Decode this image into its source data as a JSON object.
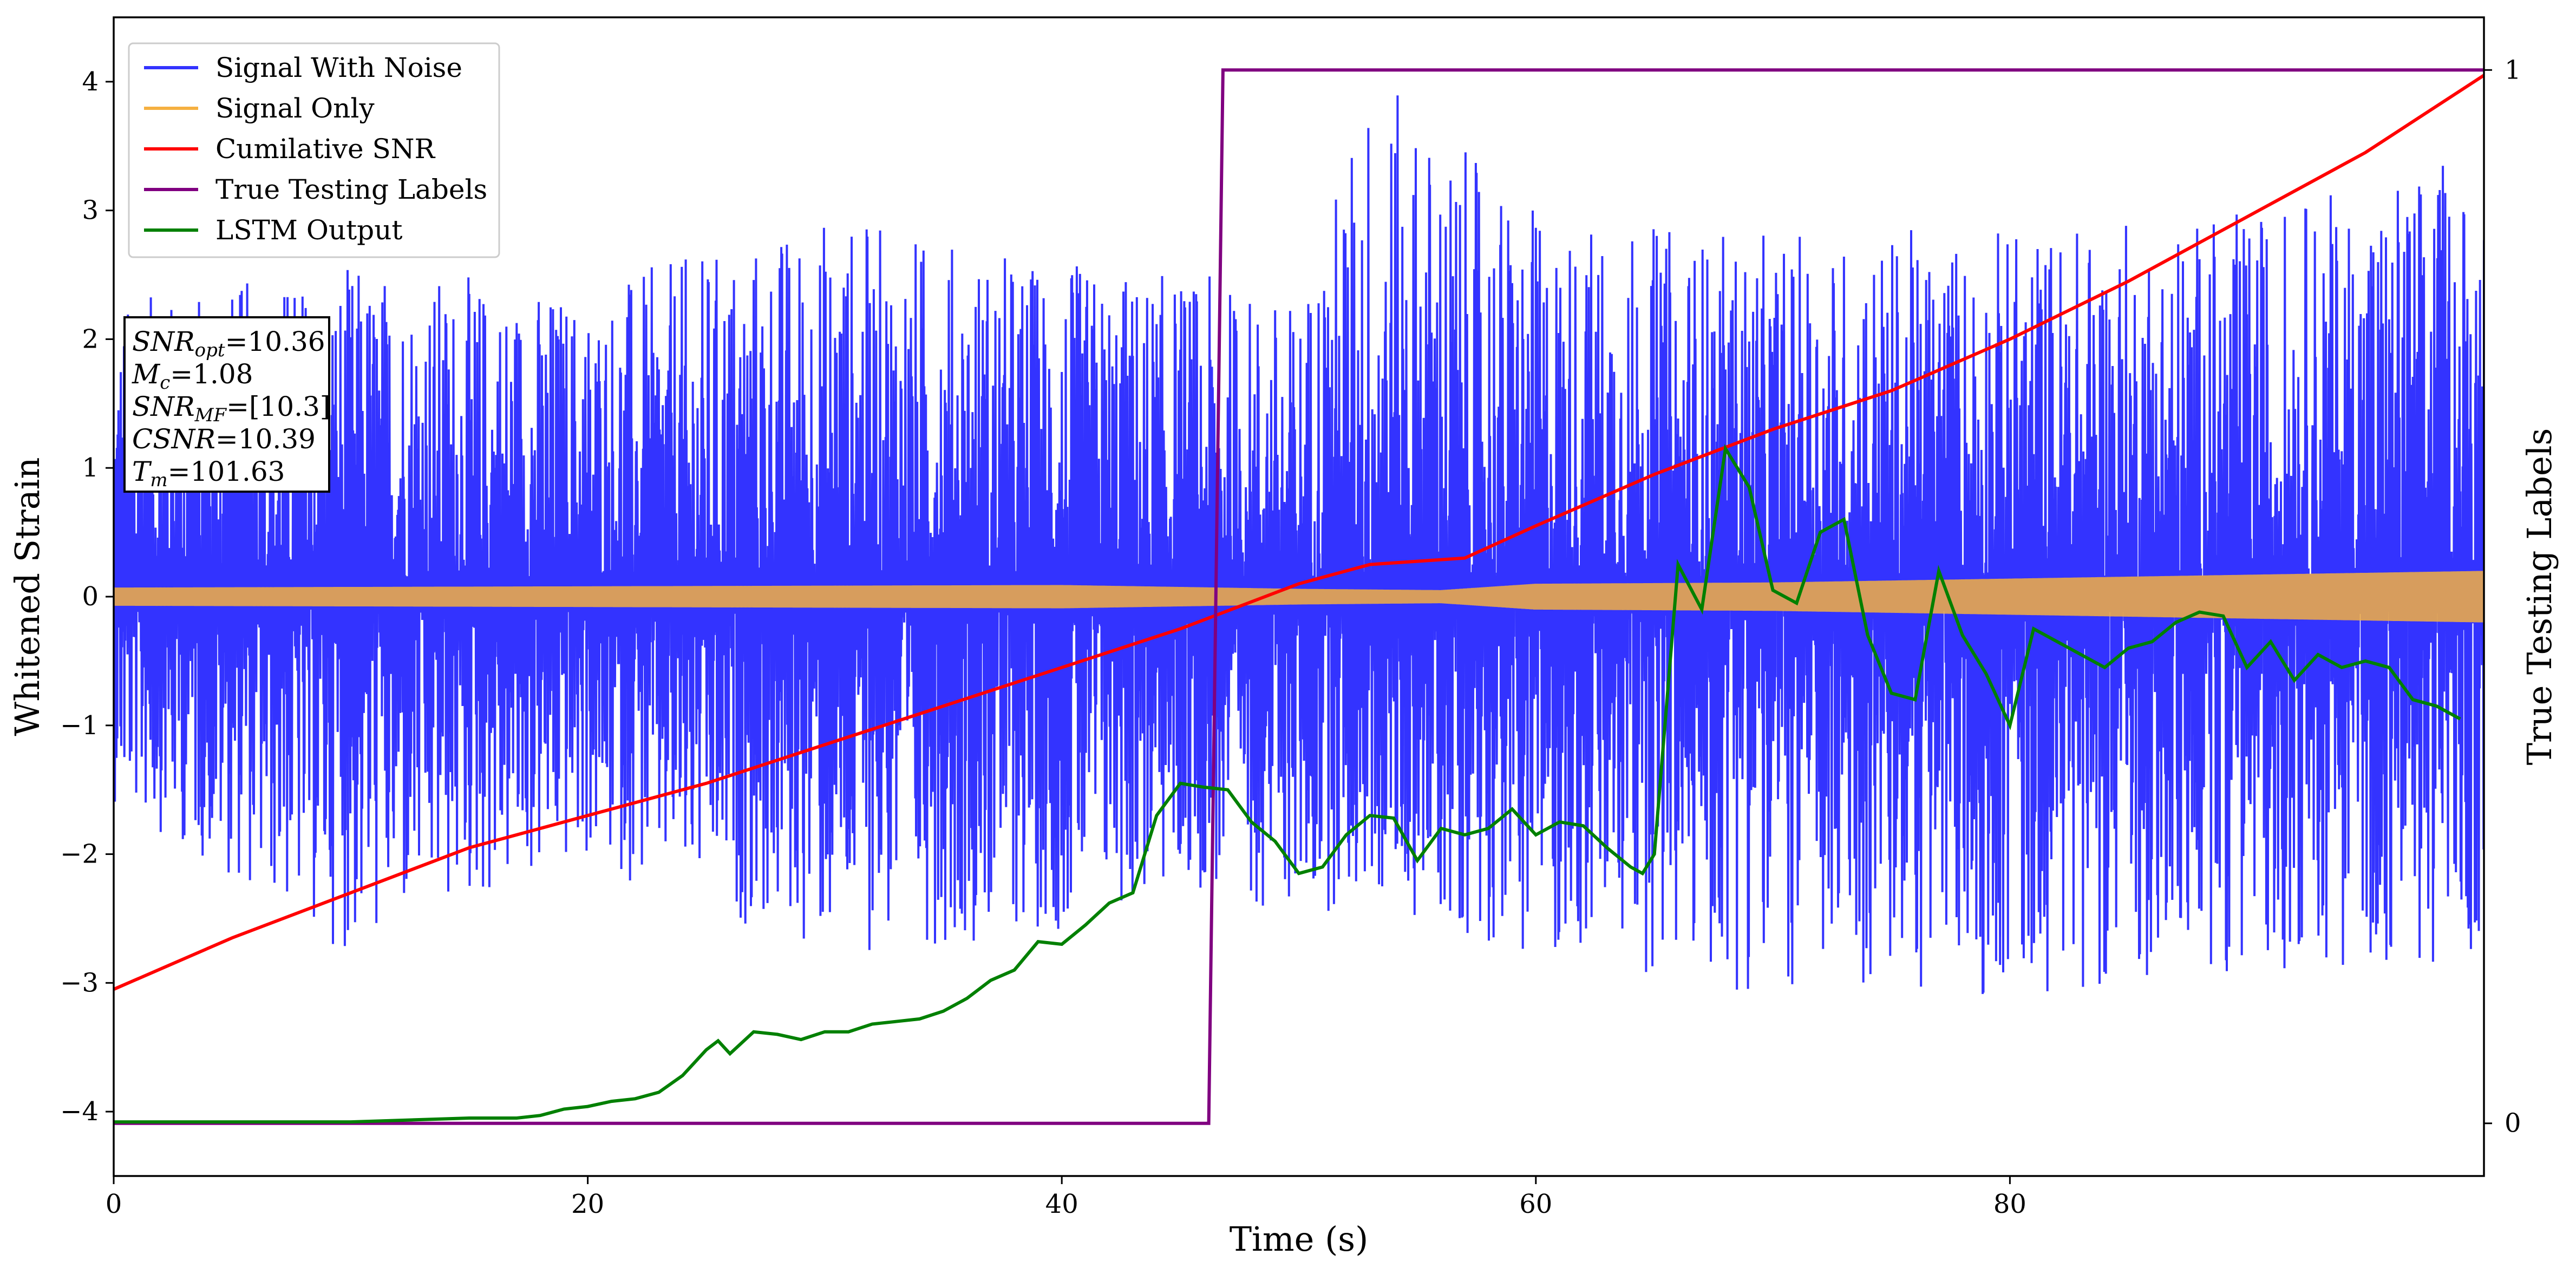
{
  "chart_data": {
    "type": "line",
    "xlabel": "Time (s)",
    "ylabel_left": "Whitened Strain",
    "ylabel_right": "True Testing Labels",
    "xlim": [
      0,
      100
    ],
    "ylim_left": [
      -4.5,
      4.5
    ],
    "ylim_right": [
      -0.05,
      1.05
    ],
    "x_ticks": [
      0,
      20,
      40,
      60,
      80
    ],
    "y_left_ticks": [
      -4,
      -3,
      -2,
      -1,
      0,
      1,
      2,
      3,
      4
    ],
    "y_right_ticks": [
      0,
      1
    ],
    "legend_position": "upper-left",
    "info_box": [
      "SNRopt=10.36",
      "Mc=1.08",
      "SNRMF=[10.3]",
      "CSNR=10.39",
      "Tm=101.63"
    ],
    "info_box_parts": [
      {
        "base": "SNR",
        "sub": "opt",
        "value": "=10.36"
      },
      {
        "base": "M",
        "sub": "c",
        "value": "=1.08"
      },
      {
        "base": "SNR",
        "sub": "MF",
        "value": "=[10.3]"
      },
      {
        "base": "CSNR",
        "sub": "",
        "value": "=10.39"
      },
      {
        "base": "T",
        "sub": "m",
        "value": "=101.63"
      }
    ],
    "series": [
      {
        "name": "Signal With Noise",
        "color": "#3333ff",
        "axis": "left",
        "description_range": [
          -3.3,
          4.1
        ],
        "envelope_x": [
          0,
          10,
          20,
          30,
          40,
          46,
          50,
          53,
          60,
          70,
          80,
          90,
          100
        ],
        "envelope_upper": [
          2.3,
          2.6,
          2.4,
          3.0,
          2.6,
          2.5,
          2.3,
          4.1,
          3.0,
          2.8,
          2.9,
          3.0,
          3.5
        ],
        "envelope_lower": [
          -1.6,
          -2.8,
          -2.1,
          -2.8,
          -2.6,
          -2.3,
          -2.5,
          -2.4,
          -2.8,
          -3.1,
          -3.1,
          -2.9,
          -2.9
        ]
      },
      {
        "name": "Signal Only",
        "color": "#f5b041",
        "axis": "left",
        "x": [
          0,
          20,
          40,
          50,
          56,
          60,
          70,
          80,
          90,
          100
        ],
        "amplitude": [
          0.07,
          0.08,
          0.09,
          0.06,
          0.05,
          0.1,
          0.11,
          0.14,
          0.17,
          0.2
        ]
      },
      {
        "name": "Cumilative SNR",
        "color": "#ff0000",
        "axis": "left",
        "x": [
          0,
          5,
          10,
          15,
          20,
          25,
          30,
          35,
          40,
          45,
          50,
          53,
          57,
          60,
          65,
          70,
          75,
          80,
          85,
          90,
          95,
          100
        ],
        "y": [
          -3.05,
          -2.65,
          -2.3,
          -1.95,
          -1.7,
          -1.45,
          -1.15,
          -0.85,
          -0.55,
          -0.25,
          0.1,
          0.25,
          0.3,
          0.55,
          0.95,
          1.3,
          1.6,
          2.0,
          2.45,
          2.95,
          3.45,
          4.05
        ]
      },
      {
        "name": "True Testing Labels",
        "color": "#800080",
        "axis": "right",
        "x": [
          0,
          46.2,
          46.8,
          100
        ],
        "y": [
          0,
          0,
          1,
          1
        ]
      },
      {
        "name": "LSTM Output",
        "color": "#008000",
        "axis": "left",
        "x": [
          0,
          10,
          15,
          17,
          18,
          19,
          20,
          21,
          22,
          23,
          24,
          25,
          25.5,
          26,
          27,
          28,
          29,
          30,
          31,
          32,
          33,
          34,
          35,
          36,
          37,
          38,
          39,
          40,
          41,
          42,
          43,
          44,
          45,
          46,
          47,
          48,
          49,
          50,
          51,
          52,
          53,
          54,
          55,
          56,
          57,
          58,
          59,
          60,
          61,
          62,
          63,
          64,
          64.5,
          65,
          66,
          67,
          68,
          69,
          70,
          71,
          72,
          73,
          74,
          75,
          76,
          77,
          78,
          79,
          80,
          81,
          82,
          83,
          84,
          85,
          86,
          87,
          88,
          89,
          90,
          91,
          92,
          93,
          94,
          95,
          96,
          97,
          98,
          99
        ],
        "y": [
          -4.08,
          -4.08,
          -4.05,
          -4.05,
          -4.03,
          -3.98,
          -3.96,
          -3.92,
          -3.9,
          -3.85,
          -3.72,
          -3.52,
          -3.45,
          -3.55,
          -3.38,
          -3.4,
          -3.44,
          -3.38,
          -3.38,
          -3.32,
          -3.3,
          -3.28,
          -3.22,
          -3.12,
          -2.98,
          -2.9,
          -2.68,
          -2.7,
          -2.55,
          -2.38,
          -2.3,
          -1.7,
          -1.45,
          -1.48,
          -1.5,
          -1.75,
          -1.9,
          -2.15,
          -2.1,
          -1.85,
          -1.7,
          -1.72,
          -2.05,
          -1.8,
          -1.85,
          -1.8,
          -1.65,
          -1.85,
          -1.75,
          -1.78,
          -1.95,
          -2.1,
          -2.15,
          -2.0,
          0.25,
          -0.1,
          1.15,
          0.85,
          0.05,
          -0.05,
          0.5,
          0.6,
          -0.3,
          -0.75,
          -0.8,
          0.2,
          -0.3,
          -0.6,
          -1.0,
          -0.25,
          -0.35,
          -0.45,
          -0.55,
          -0.4,
          -0.35,
          -0.2,
          -0.12,
          -0.15,
          -0.55,
          -0.35,
          -0.65,
          -0.45,
          -0.55,
          -0.5,
          -0.55,
          -0.8,
          -0.85,
          -0.95
        ]
      }
    ]
  }
}
